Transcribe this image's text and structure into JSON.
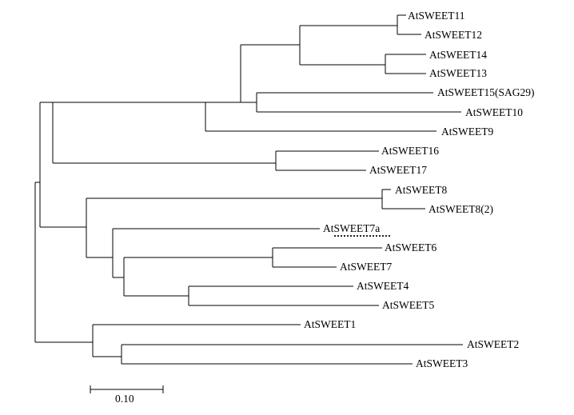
{
  "tree": {
    "leaves": [
      {
        "id": "s11",
        "label": "AtSWEET11"
      },
      {
        "id": "s12",
        "label": "AtSWEET12"
      },
      {
        "id": "s14",
        "label": "AtSWEET14"
      },
      {
        "id": "s13",
        "label": "AtSWEET13"
      },
      {
        "id": "s15",
        "label": "AtSWEET15(SAG29)"
      },
      {
        "id": "s10",
        "label": "AtSWEET10"
      },
      {
        "id": "s9",
        "label": "AtSWEET9"
      },
      {
        "id": "s16",
        "label": "AtSWEET16"
      },
      {
        "id": "s17",
        "label": "AtSWEET17"
      },
      {
        "id": "s8",
        "label": "AtSWEET8"
      },
      {
        "id": "s8b",
        "label": "AtSWEET8(2)"
      },
      {
        "id": "s7a",
        "label": "AtSWEET7a",
        "highlighted": true
      },
      {
        "id": "s6",
        "label": "AtSWEET6"
      },
      {
        "id": "s7",
        "label": "AtSWEET7"
      },
      {
        "id": "s4",
        "label": "AtSWEET4"
      },
      {
        "id": "s5",
        "label": "AtSWEET5"
      },
      {
        "id": "s1",
        "label": "AtSWEET1"
      },
      {
        "id": "s2",
        "label": "AtSWEET2"
      },
      {
        "id": "s3",
        "label": "AtSWEET3"
      }
    ],
    "scale_bar": {
      "length": 0.1,
      "label": "0.10"
    }
  }
}
